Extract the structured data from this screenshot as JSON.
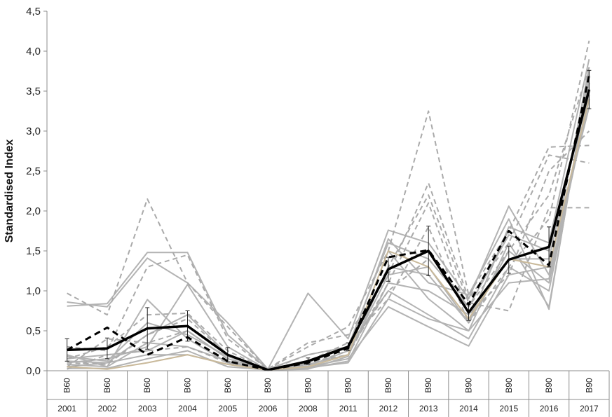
{
  "chart_data": {
    "type": "line",
    "title": "",
    "ylabel": "Standardised Index",
    "xlabel": "",
    "ylim": [
      0,
      4.5
    ],
    "yticks": [
      "0,0",
      "0,5",
      "1,0",
      "1,5",
      "2,0",
      "2,5",
      "3,0",
      "3,5",
      "4,0",
      "4,5"
    ],
    "categories": [
      {
        "code": "B60",
        "year": "2001"
      },
      {
        "code": "B60",
        "year": "2002"
      },
      {
        "code": "B60",
        "year": "2003"
      },
      {
        "code": "B60",
        "year": "2004"
      },
      {
        "code": "B60",
        "year": "2005"
      },
      {
        "code": "B90",
        "year": "2006"
      },
      {
        "code": "B90",
        "year": "2008"
      },
      {
        "code": "B90",
        "year": "2011"
      },
      {
        "code": "B90",
        "year": "2012"
      },
      {
        "code": "B90",
        "year": "2013"
      },
      {
        "code": "B90",
        "year": "2014"
      },
      {
        "code": "B90",
        "year": "2015"
      },
      {
        "code": "B90",
        "year": "2016"
      },
      {
        "code": "B90",
        "year": "2017"
      }
    ],
    "grid": false,
    "legend": "none",
    "mean_solid": {
      "color": "#000000",
      "values": [
        0.26,
        0.28,
        0.53,
        0.56,
        0.2,
        0.01,
        0.12,
        0.3,
        1.27,
        1.5,
        0.73,
        1.39,
        1.55,
        3.52
      ],
      "err": [
        0.14,
        0.13,
        0.26,
        0.19,
        0.09,
        0.01,
        0.04,
        0.05,
        0.15,
        0.31,
        0.1,
        0.17,
        0.25,
        0.24
      ]
    },
    "mean_dashed": {
      "color": "#000000",
      "values": [
        0.26,
        0.54,
        0.2,
        0.42,
        0.12,
        0.01,
        0.1,
        0.28,
        1.42,
        1.51,
        0.83,
        1.75,
        1.32,
        3.7
      ]
    },
    "grey_solid": [
      [
        0.86,
        0.8,
        1.41,
        1.1,
        0.6,
        0.02,
        0.2,
        0.3,
        1.6,
        1.4,
        0.8,
        1.7,
        1.5,
        3.6
      ],
      [
        0.81,
        0.84,
        1.48,
        1.48,
        0.45,
        0.02,
        0.97,
        0.4,
        1.76,
        1.6,
        0.9,
        2.06,
        1.2,
        3.8
      ],
      [
        0.2,
        0.05,
        0.89,
        0.4,
        0.1,
        0.01,
        0.05,
        0.2,
        1.2,
        1.3,
        0.6,
        1.5,
        1.1,
        3.4
      ],
      [
        0.1,
        0.15,
        0.3,
        1.08,
        0.3,
        0.01,
        0.1,
        0.3,
        1.0,
        0.7,
        0.4,
        1.3,
        1.0,
        3.5
      ],
      [
        0.05,
        0.1,
        0.45,
        0.7,
        0.2,
        0.01,
        0.08,
        0.2,
        1.5,
        0.9,
        0.5,
        1.6,
        0.8,
        3.7
      ],
      [
        0.15,
        0.2,
        0.25,
        0.5,
        0.15,
        0.01,
        0.05,
        0.15,
        0.8,
        0.55,
        0.31,
        1.2,
        1.3,
        3.3
      ],
      [
        0.08,
        0.05,
        0.35,
        0.3,
        0.12,
        0.01,
        0.03,
        0.12,
        1.1,
        1.0,
        0.7,
        1.4,
        1.4,
        3.6
      ],
      [
        0.12,
        0.1,
        0.2,
        0.2,
        0.08,
        0.01,
        0.04,
        0.1,
        0.9,
        0.65,
        0.5,
        1.1,
        1.15,
        3.45
      ],
      [
        0.03,
        0.03,
        0.15,
        0.25,
        0.05,
        0.01,
        0.02,
        0.18,
        1.3,
        1.2,
        0.6,
        1.8,
        1.6,
        3.9
      ],
      [
        0.18,
        0.12,
        0.6,
        0.45,
        0.18,
        0.01,
        0.06,
        0.25,
        1.65,
        1.1,
        0.95,
        1.9,
        0.77,
        3.75
      ]
    ],
    "grey_dashed": [
      [
        0.97,
        0.7,
        2.15,
        1.1,
        0.55,
        0.02,
        0.3,
        0.55,
        1.5,
        3.25,
        0.95,
        1.75,
        2.8,
        2.82
      ],
      [
        0.3,
        0.25,
        1.3,
        1.45,
        0.4,
        0.02,
        0.35,
        0.45,
        1.2,
        2.35,
        0.9,
        1.6,
        2.7,
        2.6
      ],
      [
        0.15,
        0.3,
        0.7,
        0.72,
        0.25,
        0.01,
        0.2,
        0.3,
        1.3,
        2.2,
        0.85,
        0.75,
        2.04,
        2.04
      ],
      [
        0.05,
        0.4,
        0.35,
        0.5,
        0.15,
        0.01,
        0.1,
        0.2,
        1.1,
        2.1,
        0.7,
        1.2,
        2.5,
        3.0
      ],
      [
        0.02,
        0.2,
        0.25,
        0.3,
        0.1,
        0.01,
        0.12,
        0.35,
        0.9,
        1.8,
        0.6,
        1.3,
        1.9,
        4.13
      ],
      [
        0.1,
        0.08,
        0.45,
        0.65,
        0.2,
        0.01,
        0.08,
        0.25,
        1.0,
        1.4,
        0.8,
        1.5,
        2.2,
        3.8
      ]
    ],
    "tan_series": {
      "color": "#c9b99a",
      "values": [
        0.05,
        0.02,
        0.1,
        0.2,
        0.08,
        0.01,
        0.05,
        0.2,
        1.5,
        1.3,
        0.65,
        1.4,
        1.3,
        3.4
      ]
    }
  }
}
